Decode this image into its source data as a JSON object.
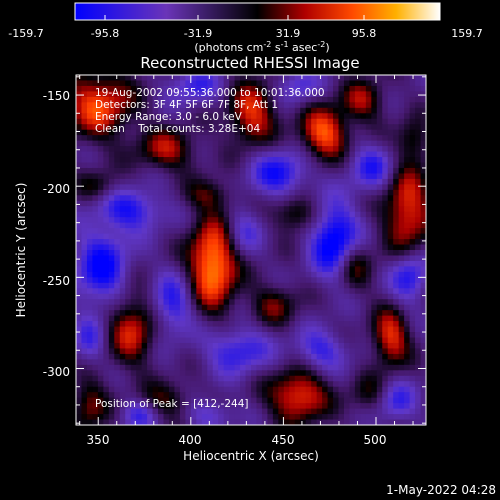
{
  "colorbar": {
    "ticks": [
      "-159.7",
      "-95.8",
      "-31.9",
      "31.9",
      "95.8",
      "159.7"
    ],
    "unit_prefix": "(photons cm",
    "unit_exp1": "-2",
    "unit_mid": " s",
    "unit_exp2": "-1",
    "unit_mid2": " asec",
    "unit_exp3": "-2",
    "unit_suffix": ")"
  },
  "chart_data": {
    "type": "heatmap",
    "title": "Reconstructed RHESSI Image",
    "xlabel": "Heliocentric X (arcsec)",
    "ylabel": "Heliocentric Y (arcsec)",
    "xlim": [
      338,
      527
    ],
    "ylim": [
      -331,
      -139
    ],
    "xticks": [
      "350",
      "400",
      "450",
      "500"
    ],
    "yticks": [
      "-150",
      "-200",
      "-250",
      "-300"
    ],
    "xtick_values": [
      350,
      400,
      450,
      500
    ],
    "ytick_values": [
      -150,
      -200,
      -250,
      -300
    ],
    "colorbar_range": [
      -159.7,
      159.7
    ],
    "peak": [
      412,
      -244
    ],
    "blobs": [
      {
        "x": 412,
        "y": -243,
        "value": 160,
        "sx": 9,
        "sy": 17
      },
      {
        "x": 472,
        "y": -171,
        "value": 130,
        "sx": 9,
        "sy": 10
      },
      {
        "x": 350,
        "y": -155,
        "value": 120,
        "sx": 13,
        "sy": 13
      },
      {
        "x": 433,
        "y": -160,
        "value": 110,
        "sx": 9,
        "sy": 12
      },
      {
        "x": 458,
        "y": -315,
        "value": 120,
        "sx": 11,
        "sy": 10
      },
      {
        "x": 517,
        "y": -213,
        "value": 115,
        "sx": 9,
        "sy": 17
      },
      {
        "x": 368,
        "y": -278,
        "value": 100,
        "sx": 9,
        "sy": 14
      },
      {
        "x": 387,
        "y": -180,
        "value": 85,
        "sx": 11,
        "sy": 8
      },
      {
        "x": 508,
        "y": -283,
        "value": 110,
        "sx": 7,
        "sy": 11
      },
      {
        "x": 493,
        "y": -153,
        "value": 80,
        "sx": 8,
        "sy": 8
      },
      {
        "x": 457,
        "y": -215,
        "value": 75,
        "sx": 8,
        "sy": 7
      },
      {
        "x": 488,
        "y": -243,
        "value": 75,
        "sx": 7,
        "sy": 10
      },
      {
        "x": 387,
        "y": -318,
        "value": 60,
        "sx": 11,
        "sy": 7
      },
      {
        "x": 345,
        "y": -320,
        "value": 75,
        "sx": 7,
        "sy": 10
      },
      {
        "x": 445,
        "y": -265,
        "value": 65,
        "sx": 9,
        "sy": 8
      },
      {
        "x": 410,
        "y": -205,
        "value": 55,
        "sx": 9,
        "sy": 6
      },
      {
        "x": 520,
        "y": -175,
        "value": 60,
        "sx": 6,
        "sy": 8
      },
      {
        "x": 350,
        "y": -200,
        "value": 50,
        "sx": 8,
        "sy": 6
      },
      {
        "x": 498,
        "y": -315,
        "value": 55,
        "sx": 8,
        "sy": 8
      },
      {
        "x": 352,
        "y": -245,
        "value": -110,
        "sx": 10,
        "sy": 15
      },
      {
        "x": 478,
        "y": -230,
        "value": -135,
        "sx": 9,
        "sy": 14
      },
      {
        "x": 368,
        "y": -213,
        "value": -90,
        "sx": 12,
        "sy": 8
      },
      {
        "x": 448,
        "y": -193,
        "value": -95,
        "sx": 11,
        "sy": 9
      },
      {
        "x": 390,
        "y": -265,
        "value": -85,
        "sx": 8,
        "sy": 12
      },
      {
        "x": 425,
        "y": -290,
        "value": -85,
        "sx": 12,
        "sy": 9
      },
      {
        "x": 498,
        "y": -190,
        "value": -80,
        "sx": 9,
        "sy": 9
      },
      {
        "x": 470,
        "y": -290,
        "value": -75,
        "sx": 10,
        "sy": 8
      },
      {
        "x": 402,
        "y": -145,
        "value": -70,
        "sx": 10,
        "sy": 7
      },
      {
        "x": 518,
        "y": -250,
        "value": -95,
        "sx": 7,
        "sy": 10
      },
      {
        "x": 510,
        "y": -318,
        "value": -80,
        "sx": 8,
        "sy": 8
      },
      {
        "x": 428,
        "y": -225,
        "value": -60,
        "sx": 7,
        "sy": 9
      },
      {
        "x": 372,
        "y": -325,
        "value": -70,
        "sx": 7,
        "sy": 6
      },
      {
        "x": 458,
        "y": -145,
        "value": -60,
        "sx": 8,
        "sy": 7
      },
      {
        "x": 345,
        "y": -285,
        "value": -60,
        "sx": 6,
        "sy": 9
      },
      {
        "x": 410,
        "y": -325,
        "value": -60,
        "sx": 9,
        "sy": 6
      }
    ]
  },
  "annotation": {
    "line1": "19-Aug-2002 09:55:36.000 to 10:01:36.000",
    "line2": "Detectors: 3F 4F 5F 6F 7F 8F, Att 1",
    "line3": "Energy Range: 3.0 - 6.0 keV",
    "line4": "Clean    Total counts: 3.28E+04",
    "peak_label": "Position of Peak = [412,-244]"
  },
  "timestamp": "1-May-2022 04:28",
  "colors": {
    "background": "#000000",
    "text": "#ffffff"
  }
}
